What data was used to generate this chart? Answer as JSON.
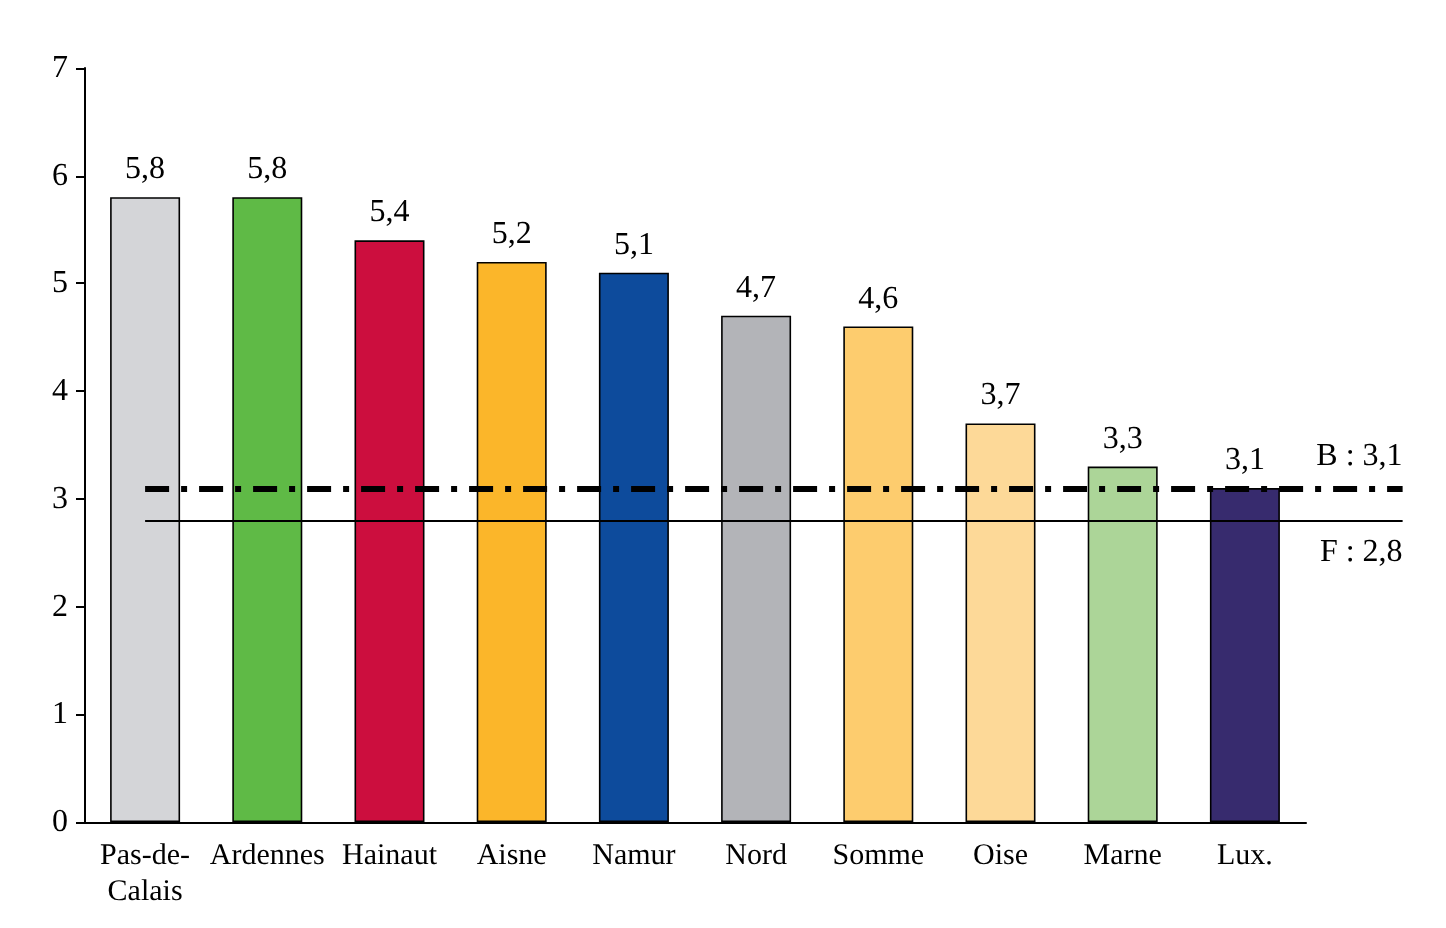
{
  "chart_data": {
    "type": "bar",
    "categories": [
      "Pas-de-Calais",
      "Ardennes",
      "Hainaut",
      "Aisne",
      "Namur",
      "Nord",
      "Somme",
      "Oise",
      "Marne",
      "Lux."
    ],
    "values": [
      5.8,
      5.8,
      5.4,
      5.2,
      5.1,
      4.7,
      4.6,
      3.7,
      3.3,
      3.1
    ],
    "colors": [
      "#d4d5d8",
      "#5fba46",
      "#cc0e3e",
      "#fbb62a",
      "#0d4b9c",
      "#b3b4b8",
      "#fdcc6e",
      "#fdd998",
      "#acd598",
      "#372b6e"
    ],
    "value_labels": [
      "5,8",
      "5,8",
      "5,4",
      "5,2",
      "5,1",
      "4,7",
      "4,6",
      "3,7",
      "3,3",
      "3,1"
    ],
    "ylim": [
      0,
      7
    ],
    "yticks": [
      0,
      1,
      2,
      3,
      4,
      5,
      6,
      7
    ],
    "grid": false,
    "ref_lines": [
      {
        "axis": "y",
        "value": 3.1,
        "label": "B : 3,1",
        "color": "#000000",
        "line_style": "dashed"
      },
      {
        "axis": "y",
        "value": 2.8,
        "label": "F : 2,8",
        "color": "#000000",
        "line_style": "solid"
      }
    ]
  }
}
